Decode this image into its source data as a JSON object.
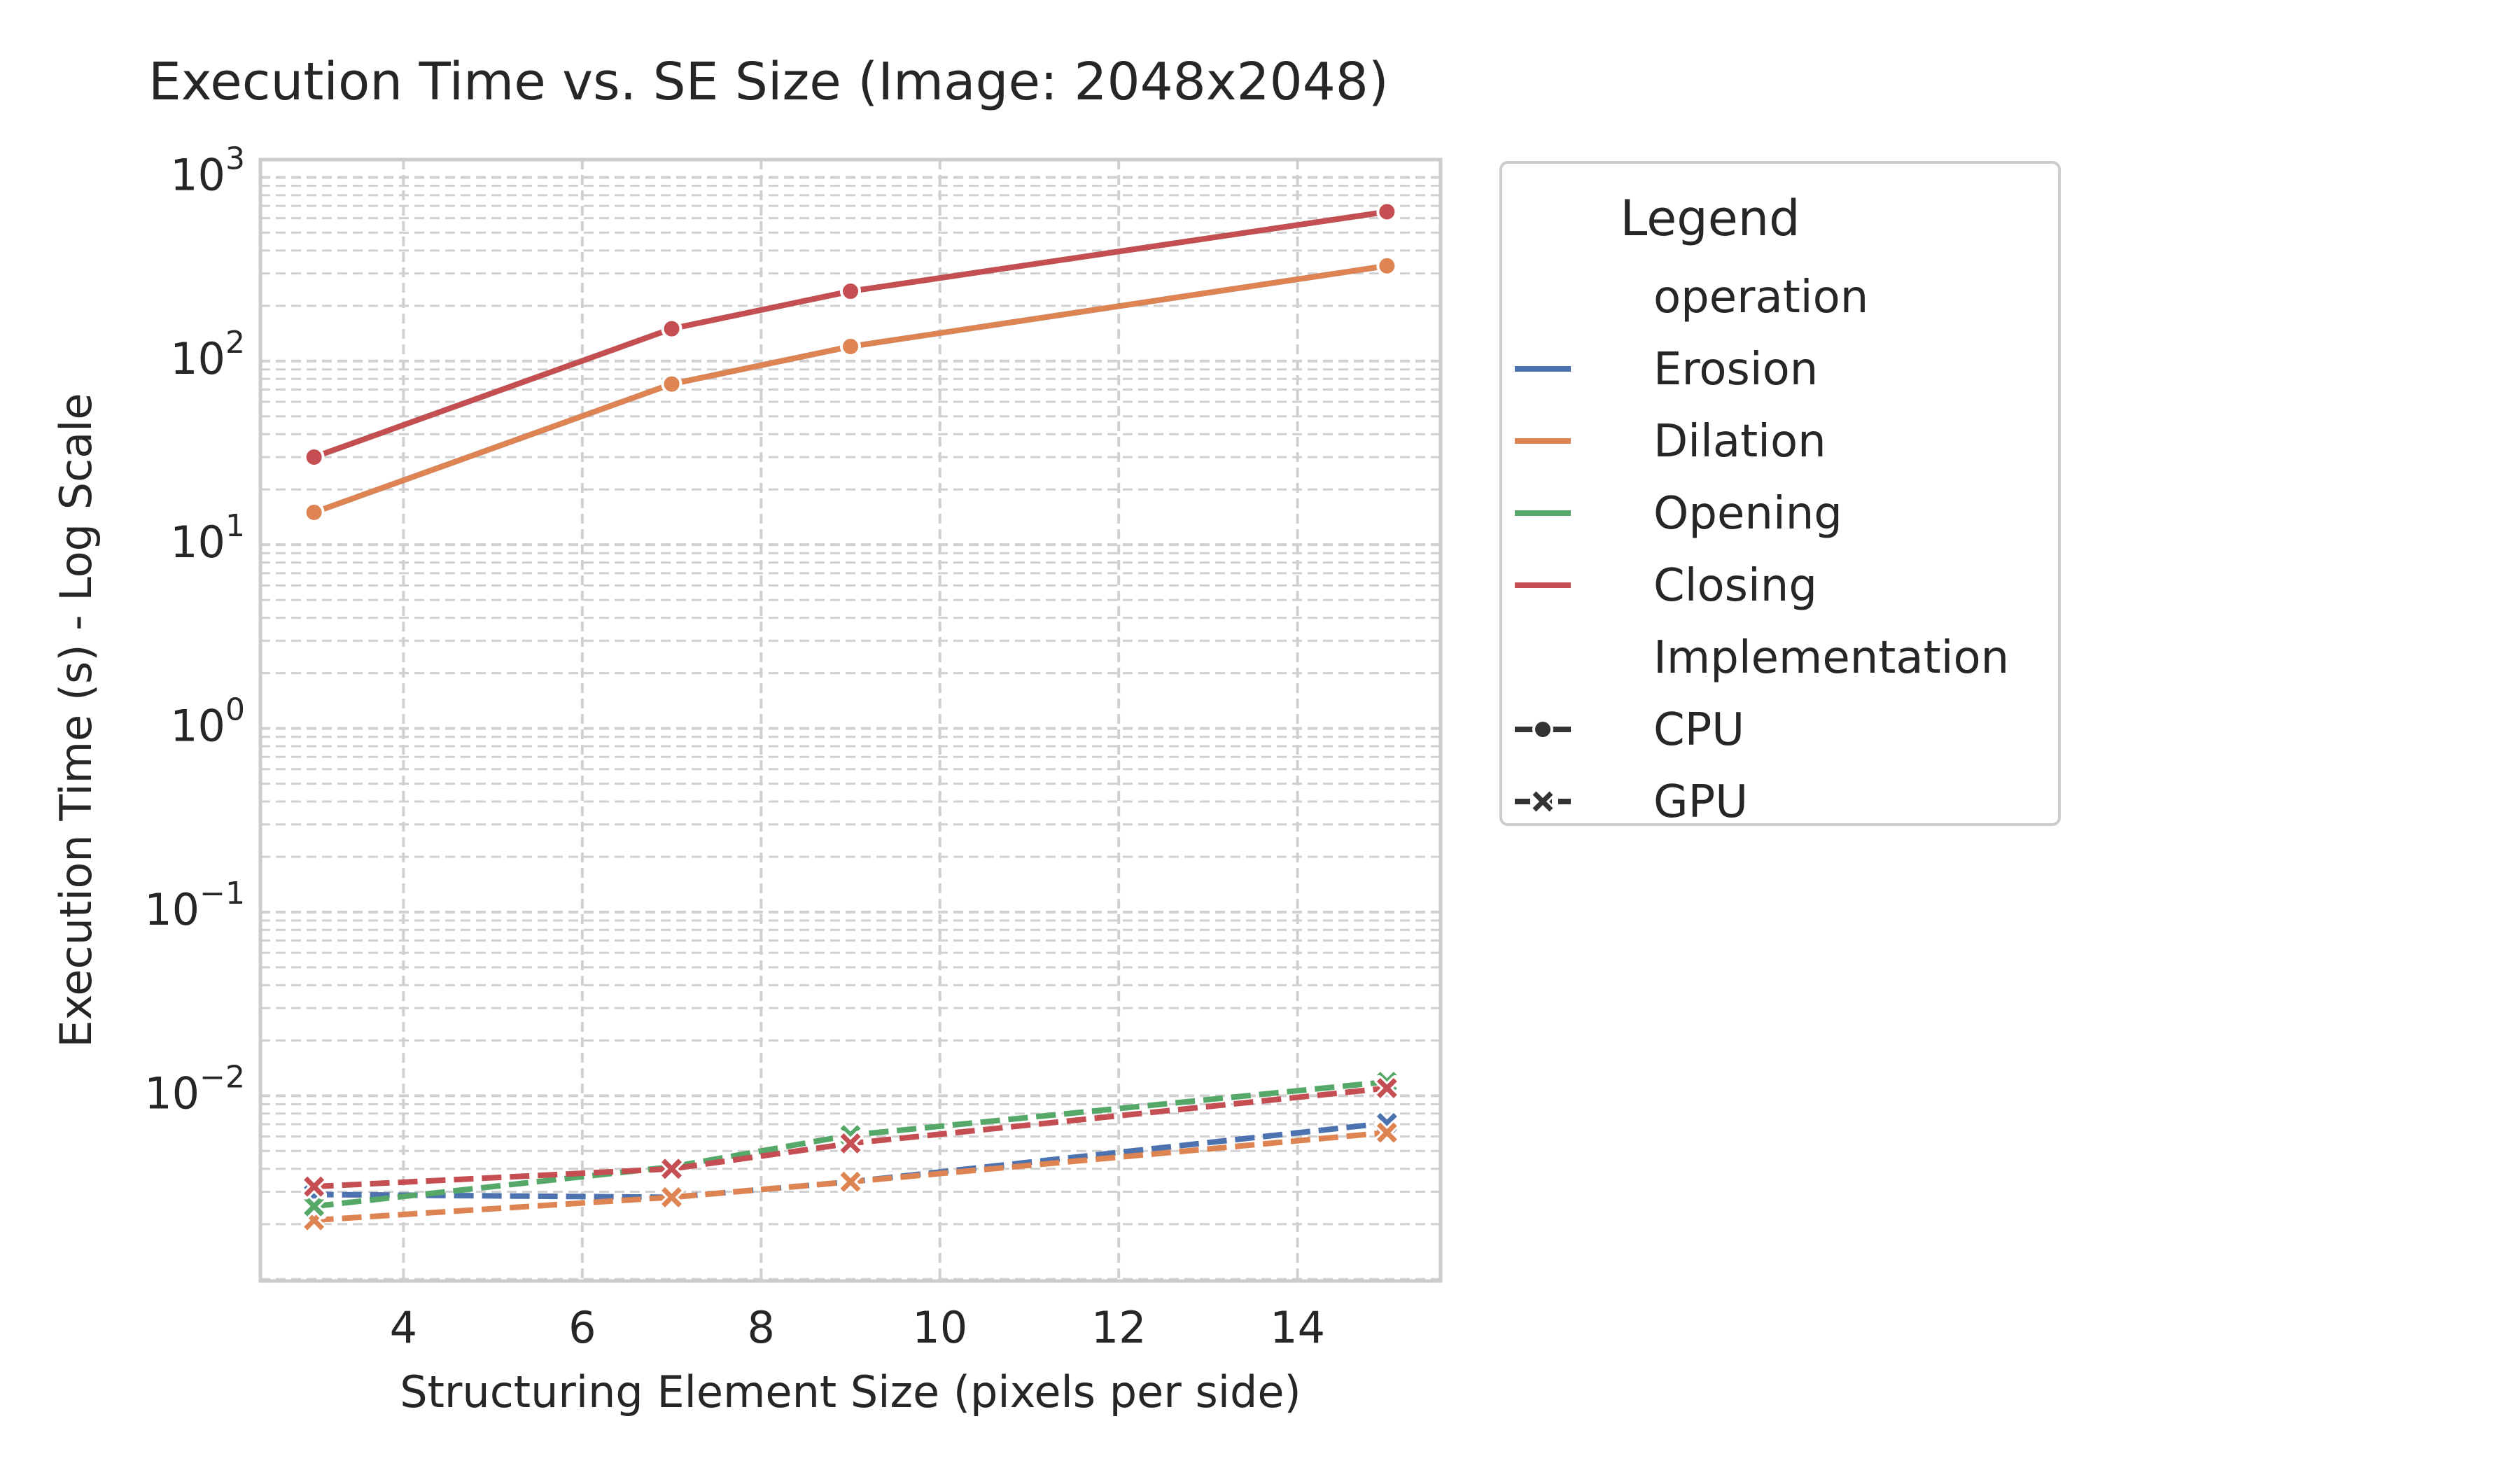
{
  "chart_data": {
    "type": "line",
    "title": "Execution Time vs. SE Size (Image: 2048x2048)",
    "xlabel": "Structuring Element Size (pixels per side)",
    "ylabel": "Execution Time (s) - Log Scale",
    "x": [
      3,
      7,
      9,
      15
    ],
    "xlim": [
      2.4,
      15.6
    ],
    "ylim": [
      0.00098,
      1250
    ],
    "yscale": "log",
    "grid": true,
    "xticks": [
      4,
      6,
      8,
      10,
      12,
      14
    ],
    "yticks": [
      {
        "base": "10",
        "exp": "−2",
        "value": 0.01
      },
      {
        "base": "10",
        "exp": "−1",
        "value": 0.1
      },
      {
        "base": "10",
        "exp": "0",
        "value": 1
      },
      {
        "base": "10",
        "exp": "1",
        "value": 10
      },
      {
        "base": "10",
        "exp": "2",
        "value": 100
      },
      {
        "base": "10",
        "exp": "3",
        "value": 1000
      }
    ],
    "legend": {
      "title": "Legend",
      "placement": "outside-right",
      "hue_title": "operation",
      "style_title": "Implementation",
      "operations": [
        "Erosion",
        "Dilation",
        "Opening",
        "Closing"
      ],
      "implementations": [
        "CPU",
        "GPU"
      ]
    },
    "colors": {
      "Erosion": "#4c72b0",
      "Dilation": "#dd8452",
      "Opening": "#55a868",
      "Closing": "#c44e52"
    },
    "series": [
      {
        "operation": "Erosion",
        "implementation": "CPU",
        "values": [
          15,
          75,
          120,
          330
        ]
      },
      {
        "operation": "Dilation",
        "implementation": "CPU",
        "values": [
          15,
          75,
          120,
          330
        ]
      },
      {
        "operation": "Opening",
        "implementation": "CPU",
        "values": [
          30,
          150,
          240,
          650
        ]
      },
      {
        "operation": "Closing",
        "implementation": "CPU",
        "values": [
          30,
          150,
          240,
          650
        ]
      },
      {
        "operation": "Erosion",
        "implementation": "GPU",
        "values": [
          0.0029,
          0.0028,
          0.0034,
          0.0071
        ]
      },
      {
        "operation": "Dilation",
        "implementation": "GPU",
        "values": [
          0.0021,
          0.0028,
          0.0034,
          0.0063
        ]
      },
      {
        "operation": "Opening",
        "implementation": "GPU",
        "values": [
          0.0025,
          0.0041,
          0.0061,
          0.0119
        ]
      },
      {
        "operation": "Closing",
        "implementation": "GPU",
        "values": [
          0.0032,
          0.004,
          0.0055,
          0.011
        ]
      }
    ]
  }
}
